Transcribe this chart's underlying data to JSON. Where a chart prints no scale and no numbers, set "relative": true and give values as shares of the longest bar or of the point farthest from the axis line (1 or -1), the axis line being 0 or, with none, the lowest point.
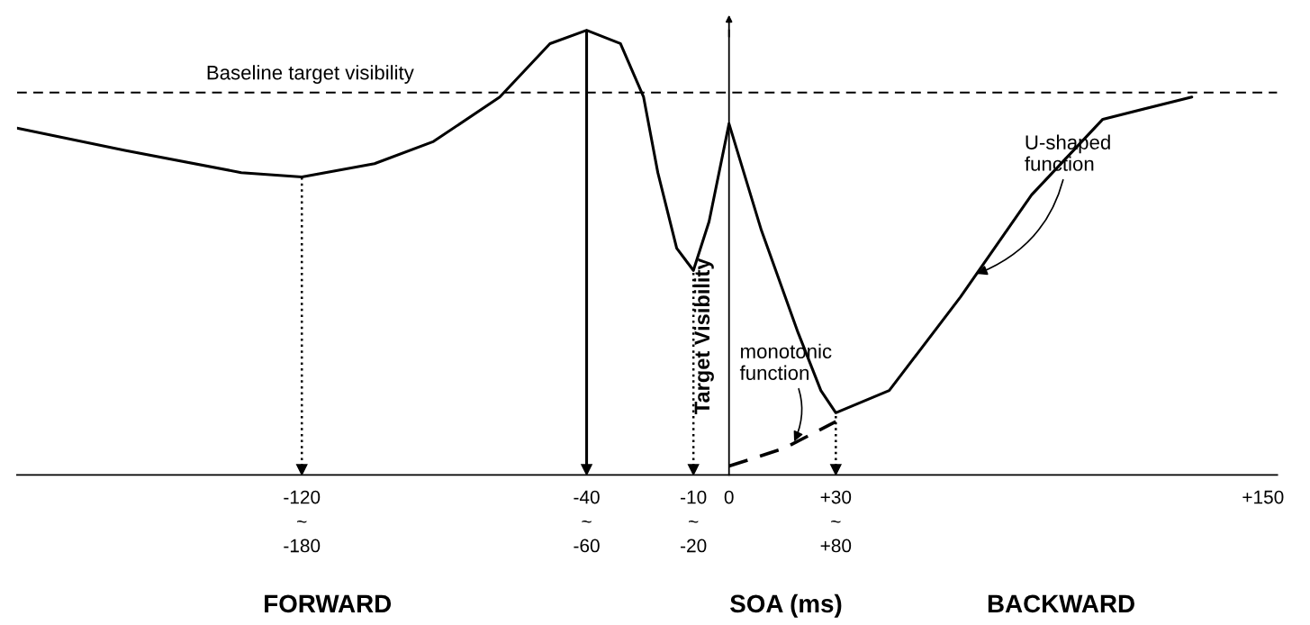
{
  "chart_data": {
    "type": "line",
    "relative": true,
    "xlabel": "SOA (ms)",
    "ylabel": "Target Visibility",
    "x": [
      -200,
      -169.7,
      -137,
      -120,
      -99.6,
      -83,
      -64.4,
      -50.3,
      -40,
      -30.5,
      -24,
      -20,
      -14.7,
      -10,
      -5.6,
      0,
      9.1,
      19.4,
      25.8,
      30,
      45,
      65,
      85,
      105,
      130
    ],
    "series": [
      {
        "color": "#000000",
        "line_style": "solid",
        "values": [
          0.78,
          0.73,
          0.68,
          0.67,
          0.7,
          0.75,
          0.85,
          0.97,
          1.0,
          0.97,
          0.85,
          0.68,
          0.51,
          0.46,
          0.57,
          0.79,
          0.55,
          0.32,
          0.19,
          0.14,
          0.19,
          0.4,
          0.63,
          0.8,
          0.85
        ]
      },
      {
        "color": "#000000",
        "line_style": "dashed",
        "x": [
          0,
          15.5,
          30
        ],
        "values": [
          0.02,
          0.06,
          0.12
        ]
      }
    ],
    "xlim": [
      -200,
      154
    ],
    "xticks": [
      {
        "value": -120,
        "label": "-120\n~\n-180"
      },
      {
        "value": -40,
        "label": "-40\n~\n-60"
      },
      {
        "value": -10,
        "label": "-10\n~\n-20"
      },
      0,
      {
        "value": 30,
        "label": "+30\n~\n+80"
      },
      {
        "value": 150,
        "label": "+150"
      }
    ],
    "ref_lines": [
      {
        "axis": "y",
        "value": 0.86,
        "label": "Baseline target visibility",
        "line_style": "dashed",
        "color": "#000000"
      },
      {
        "axis": "x",
        "value": -120,
        "line_style": "dotted",
        "color": "#000000"
      },
      {
        "axis": "x",
        "value": -40,
        "line_style": "solid",
        "color": "#000000"
      },
      {
        "axis": "x",
        "value": -10,
        "line_style": "dotted",
        "color": "#000000"
      },
      {
        "axis": "x",
        "value": 30,
        "line_style": "dotted",
        "color": "#000000"
      }
    ],
    "annotations": [
      {
        "text": "U-shaped\nfunction",
        "x": 69,
        "y": 0.45
      },
      {
        "text": "monotonic\nfunction",
        "x": 18,
        "y": 0.07
      },
      "FORWARD",
      "BACKWARD"
    ],
    "tick_labels": "x"
  }
}
